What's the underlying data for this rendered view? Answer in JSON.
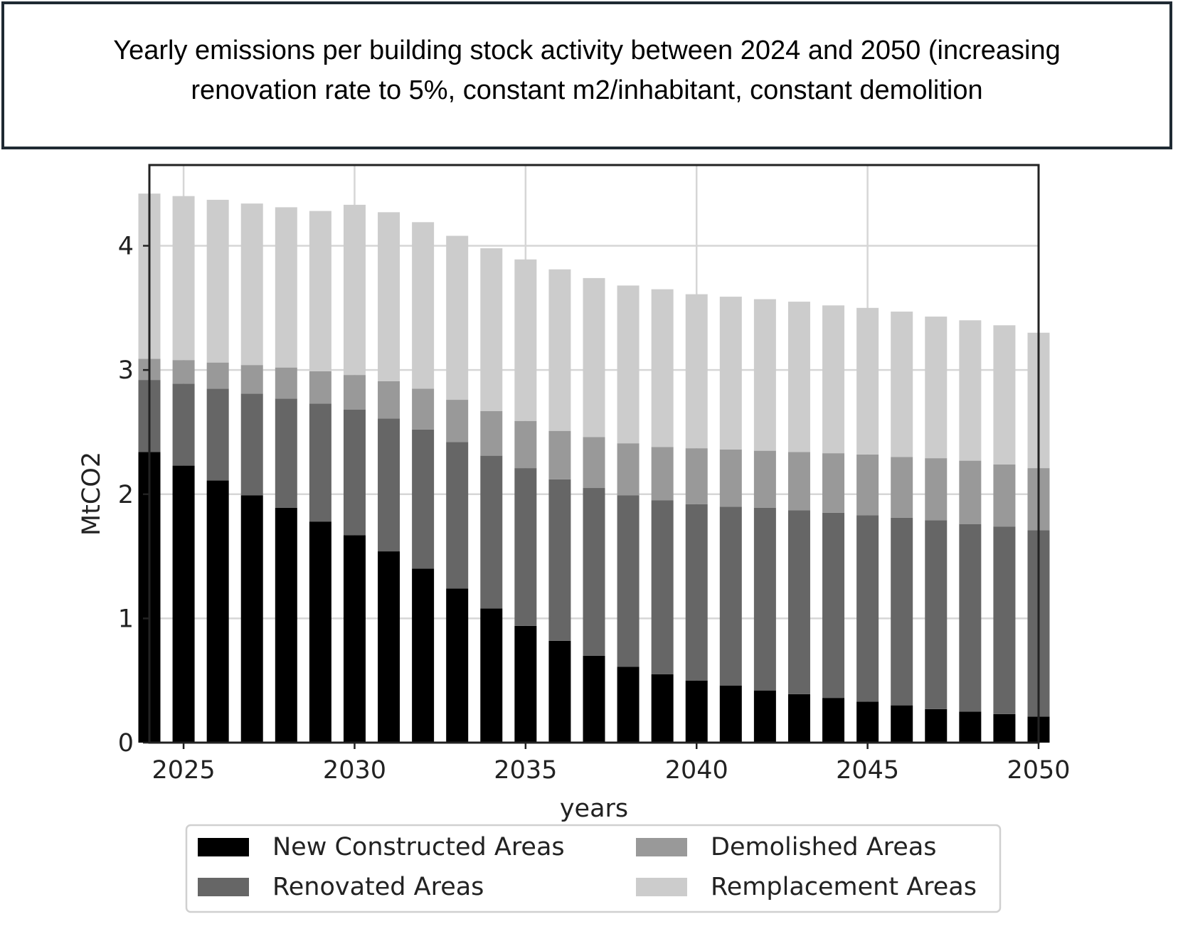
{
  "title": "Yearly emissions per building stock activity between 2024 and 2050 (increasing renovation rate to 5%, constant m2/inhabitant, constant demolition",
  "chart_data": {
    "type": "bar",
    "stacked": true,
    "x": [
      2024,
      2025,
      2026,
      2027,
      2028,
      2029,
      2030,
      2031,
      2032,
      2033,
      2034,
      2035,
      2036,
      2037,
      2038,
      2039,
      2040,
      2041,
      2042,
      2043,
      2044,
      2045,
      2046,
      2047,
      2048,
      2049,
      2050
    ],
    "series": [
      {
        "name": "New Constructed Areas",
        "color": "#000000",
        "values": [
          2.34,
          2.23,
          2.11,
          1.99,
          1.89,
          1.78,
          1.67,
          1.54,
          1.4,
          1.24,
          1.08,
          0.94,
          0.82,
          0.7,
          0.61,
          0.55,
          0.5,
          0.46,
          0.42,
          0.39,
          0.36,
          0.33,
          0.3,
          0.27,
          0.25,
          0.23,
          0.21
        ]
      },
      {
        "name": "Renovated Areas",
        "color": "#666666",
        "values": [
          0.58,
          0.66,
          0.74,
          0.82,
          0.88,
          0.95,
          1.01,
          1.07,
          1.12,
          1.18,
          1.23,
          1.27,
          1.3,
          1.35,
          1.38,
          1.4,
          1.42,
          1.44,
          1.47,
          1.48,
          1.49,
          1.5,
          1.51,
          1.52,
          1.51,
          1.51,
          1.5
        ]
      },
      {
        "name": "Demolished Areas",
        "color": "#999999",
        "values": [
          0.17,
          0.19,
          0.21,
          0.23,
          0.25,
          0.26,
          0.28,
          0.3,
          0.33,
          0.34,
          0.36,
          0.38,
          0.39,
          0.41,
          0.42,
          0.43,
          0.45,
          0.46,
          0.46,
          0.47,
          0.48,
          0.49,
          0.49,
          0.5,
          0.51,
          0.5,
          0.5
        ]
      },
      {
        "name": "Remplacement Areas",
        "color": "#cccccc",
        "values": [
          1.33,
          1.32,
          1.31,
          1.3,
          1.29,
          1.29,
          1.37,
          1.36,
          1.34,
          1.32,
          1.31,
          1.3,
          1.3,
          1.28,
          1.27,
          1.27,
          1.24,
          1.23,
          1.22,
          1.21,
          1.19,
          1.18,
          1.17,
          1.14,
          1.13,
          1.12,
          1.09
        ]
      }
    ],
    "xlabel": "years",
    "ylabel": "MtCO2",
    "xlim": [
      2024,
      2050
    ],
    "ylim": [
      0,
      4.65
    ],
    "xticks": [
      2025,
      2030,
      2035,
      2040,
      2045,
      2050
    ],
    "yticks": [
      0,
      1,
      2,
      3,
      4
    ],
    "grid": true,
    "legend_placement": "bottom-center"
  }
}
